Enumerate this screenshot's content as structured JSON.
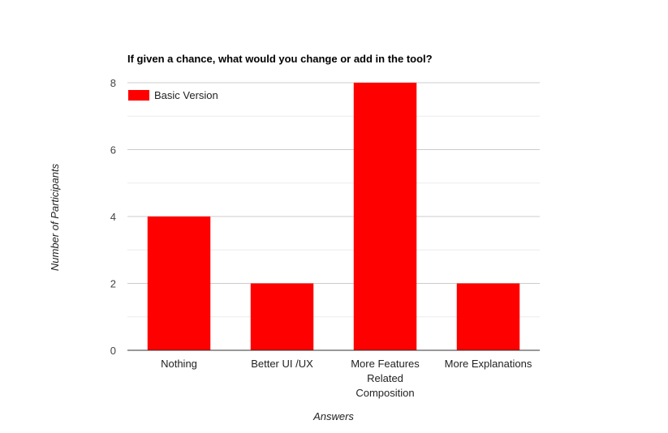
{
  "chart_data": {
    "type": "bar",
    "title": "If given a chance, what would you change or add in the tool?",
    "xlabel": "Answers",
    "ylabel": "Number of Participants",
    "categories": [
      [
        "Nothing"
      ],
      [
        "Better UI /UX"
      ],
      [
        "More Features",
        "Related",
        "Composition"
      ],
      [
        "More Explanations"
      ]
    ],
    "series": [
      {
        "name": "Basic Version",
        "color": "#ff0000",
        "values": [
          4,
          2,
          8,
          2
        ]
      }
    ],
    "ylim": [
      0,
      8
    ],
    "yticks": [
      0,
      2,
      4,
      6,
      8
    ],
    "grid": true,
    "legend": "top-left"
  }
}
